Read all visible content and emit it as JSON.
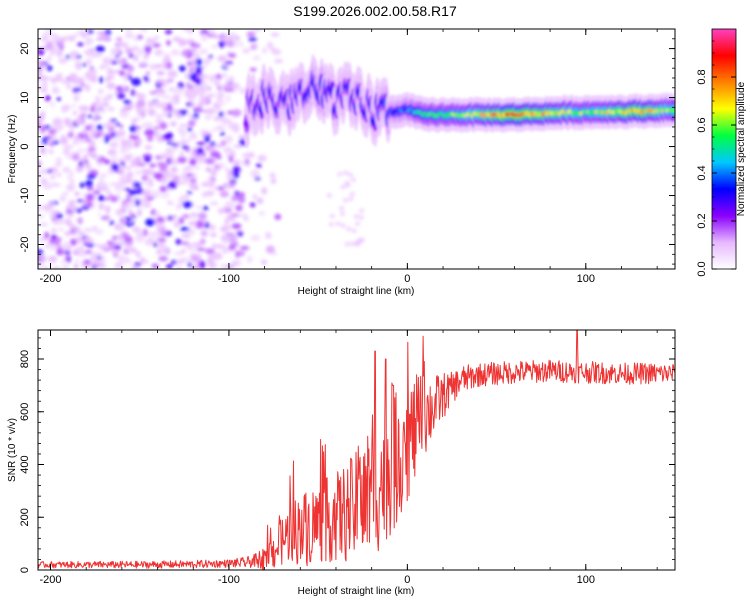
{
  "title": "S199.2026.002.00.58.R17",
  "chart_data": [
    {
      "type": "heatmap",
      "xlabel": "Height of straight line (km)",
      "ylabel": "Frequency (Hz)",
      "xlim": [
        -207,
        150
      ],
      "ylim": [
        -25,
        24
      ],
      "x_ticks": [
        -200,
        -100,
        0,
        100
      ],
      "y_ticks": [
        -20,
        -10,
        0,
        10,
        20
      ],
      "x_tick_labels": [
        "-200",
        "-100",
        "0",
        "100"
      ],
      "y_tick_labels": [
        "-20",
        "-10",
        "0",
        "10",
        "20"
      ],
      "colorbar": {
        "label": "Normalized spectral amplitude",
        "range": [
          0,
          1
        ],
        "ticks": [
          0,
          0.2,
          0.4,
          0.6,
          0.8
        ],
        "tick_labels": [
          "0.0",
          "0.2",
          "0.4",
          "0.6",
          "0.8"
        ],
        "colors": [
          "#ffffff",
          "#e6b8ff",
          "#8a00ff",
          "#0000ff",
          "#00c8ff",
          "#00ff40",
          "#ffff00",
          "#ff8000",
          "#ff0000",
          "#ff40c0"
        ]
      },
      "ridge": [
        {
          "x": -90,
          "freq": 7.5,
          "amp": 0.25
        },
        {
          "x": -80,
          "freq": 10,
          "amp": 0.3
        },
        {
          "x": -70,
          "freq": 9,
          "amp": 0.3
        },
        {
          "x": -60,
          "freq": 10.5,
          "amp": 0.3
        },
        {
          "x": -50,
          "freq": 11,
          "amp": 0.35
        },
        {
          "x": -40,
          "freq": 10,
          "amp": 0.3
        },
        {
          "x": -30,
          "freq": 9,
          "amp": 0.3
        },
        {
          "x": -20,
          "freq": 7.5,
          "amp": 0.3
        },
        {
          "x": -10,
          "freq": 7,
          "amp": 0.35
        },
        {
          "x": 0,
          "freq": 7.5,
          "amp": 0.4
        },
        {
          "x": 10,
          "freq": 6.5,
          "amp": 0.55
        },
        {
          "x": 30,
          "freq": 6.5,
          "amp": 0.6
        },
        {
          "x": 60,
          "freq": 6.5,
          "amp": 0.8
        },
        {
          "x": 80,
          "freq": 6.8,
          "amp": 0.7
        },
        {
          "x": 100,
          "freq": 7,
          "amp": 0.6
        },
        {
          "x": 130,
          "freq": 7.2,
          "amp": 0.75
        },
        {
          "x": 150,
          "freq": 7.5,
          "amp": 0.6
        }
      ]
    },
    {
      "type": "line",
      "xlabel": "Height of straight line (km)",
      "ylabel": "SNR (10 * v/v)",
      "xlim": [
        -207,
        150
      ],
      "ylim": [
        0,
        910
      ],
      "x_ticks": [
        -200,
        -100,
        0,
        100
      ],
      "y_ticks": [
        0,
        200,
        400,
        600,
        800
      ],
      "x_tick_labels": [
        "-200",
        "-100",
        "0",
        "100"
      ],
      "y_tick_labels": [
        "0",
        "200",
        "400",
        "600",
        "800"
      ],
      "series": [
        {
          "name": "SNR",
          "color": "#ee3333",
          "points": [
            [
              -207,
              20
            ],
            [
              -180,
              20
            ],
            [
              -150,
              20
            ],
            [
              -120,
              22
            ],
            [
              -100,
              25
            ],
            [
              -90,
              28
            ],
            [
              -80,
              45
            ],
            [
              -75,
              70
            ],
            [
              -70,
              110
            ],
            [
              -65,
              150
            ],
            [
              -60,
              150
            ],
            [
              -50,
              180
            ],
            [
              -40,
              200
            ],
            [
              -30,
              230
            ],
            [
              -20,
              280
            ],
            [
              -15,
              330
            ],
            [
              -10,
              380
            ],
            [
              -5,
              430
            ],
            [
              0,
              480
            ],
            [
              5,
              540
            ],
            [
              10,
              590
            ],
            [
              15,
              620
            ],
            [
              20,
              660
            ],
            [
              25,
              690
            ],
            [
              30,
              720
            ],
            [
              40,
              740
            ],
            [
              60,
              750
            ],
            [
              80,
              755
            ],
            [
              100,
              750
            ],
            [
              120,
              745
            ],
            [
              150,
              745
            ]
          ],
          "noise": [
            [
              -207,
              12
            ],
            [
              -100,
              15
            ],
            [
              -85,
              25
            ],
            [
              -75,
              70
            ],
            [
              -60,
              140
            ],
            [
              -40,
              170
            ],
            [
              -20,
              250
            ],
            [
              -5,
              260
            ],
            [
              5,
              200
            ],
            [
              15,
              120
            ],
            [
              25,
              60
            ],
            [
              40,
              45
            ],
            [
              150,
              40
            ]
          ],
          "peaks": [
            [
              -18,
              830
            ],
            [
              -12,
              800
            ],
            [
              -8,
              700
            ],
            [
              -2,
              560
            ],
            [
              95,
              910
            ]
          ]
        }
      ]
    }
  ]
}
